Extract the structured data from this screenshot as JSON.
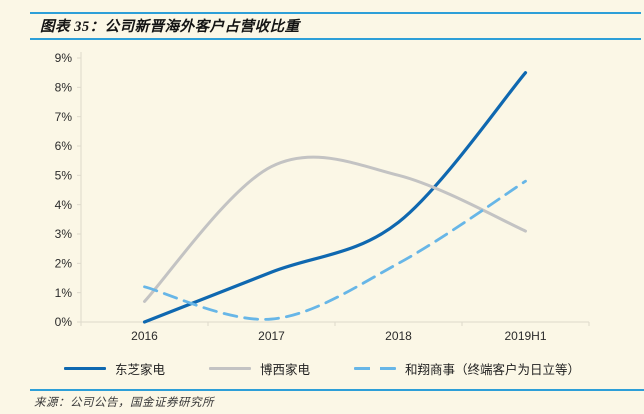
{
  "header": {
    "title": "图表 35：公司新晋海外客户占营收比重"
  },
  "source": {
    "text": "来源：公司公告，国金证券研究所"
  },
  "colors": {
    "background": "#FBF7E6",
    "rule_blue": "#2D9FD8",
    "axis": "#DEDACB",
    "series_toshiba": "#0F68B0",
    "series_bsh": "#C3C3C3",
    "series_hexiang": "#67B6E7"
  },
  "chart_data": {
    "type": "line",
    "title": "公司新晋海外客户占营收比重",
    "categories": [
      "2016",
      "2017",
      "2018",
      "2019H1"
    ],
    "series": [
      {
        "name": "东芝家电",
        "style": "solid",
        "color": "#0F68B0",
        "width": 3.2,
        "values": [
          0.0,
          1.7,
          3.4,
          8.5
        ]
      },
      {
        "name": "博西家电",
        "style": "solid",
        "color": "#C3C3C3",
        "width": 3.0,
        "values": [
          0.7,
          5.3,
          5.0,
          3.1
        ]
      },
      {
        "name": "和翔商事（终端客户为日立等）",
        "style": "dashed",
        "color": "#67B6E7",
        "width": 2.8,
        "values": [
          1.2,
          0.1,
          2.0,
          4.8
        ]
      }
    ],
    "xlabel": "",
    "ylabel": "",
    "ylim": [
      0,
      9
    ],
    "ytick_step": 1,
    "ytick_labels": [
      "0%",
      "1%",
      "2%",
      "3%",
      "4%",
      "5%",
      "6%",
      "7%",
      "8%",
      "9%"
    ],
    "grid": false,
    "legend_position": "bottom"
  }
}
